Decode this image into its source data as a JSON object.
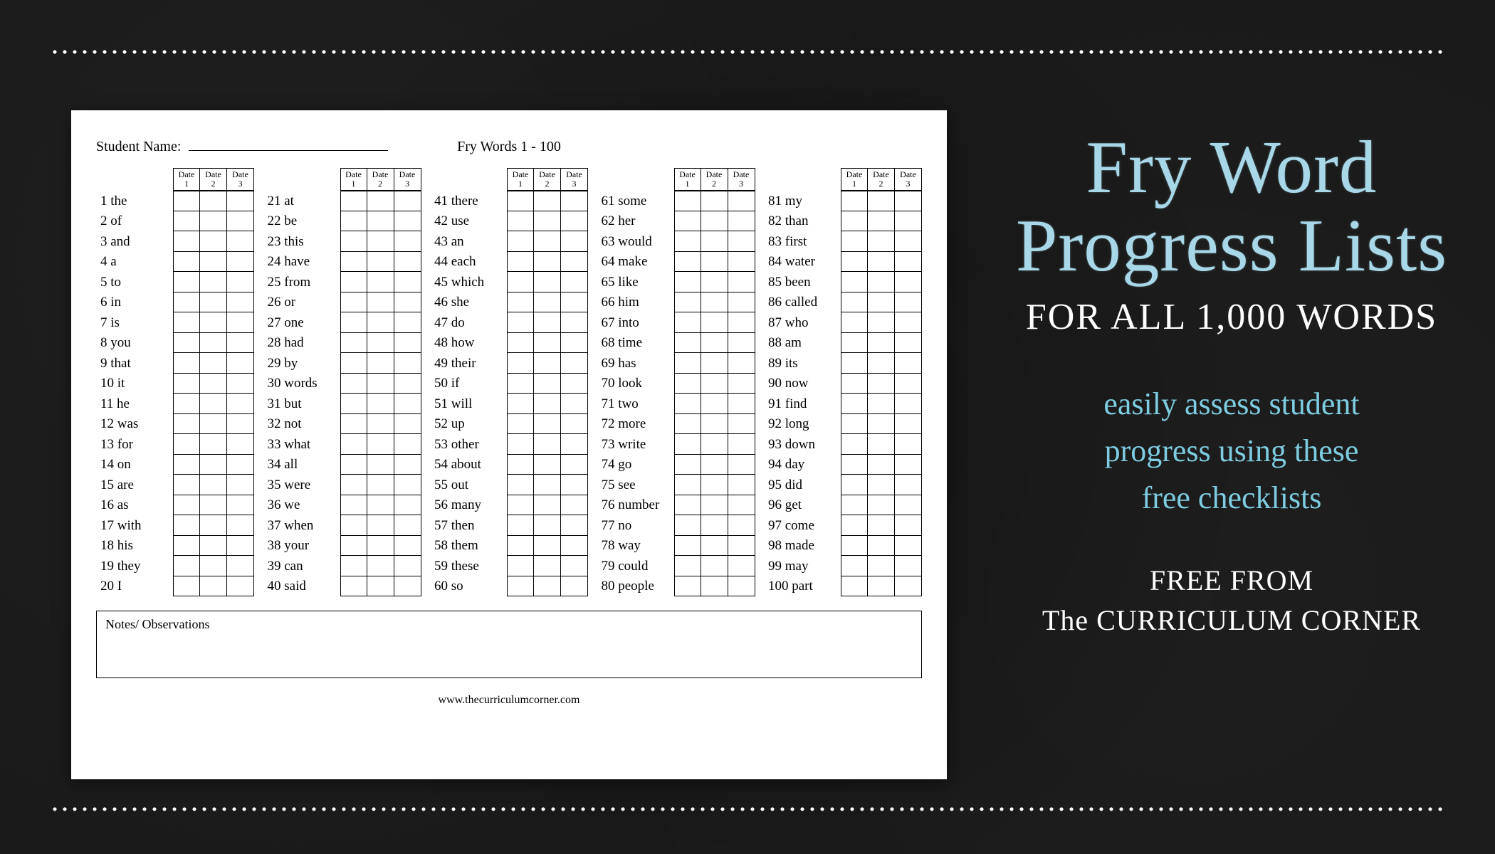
{
  "background_color": "#1a1a1a",
  "dot_color": "#ffffff",
  "worksheet": {
    "student_label": "Student Name:",
    "title": "Fry Words 1 - 100",
    "date_header_top": "Date",
    "date_numbers": [
      "1",
      "2",
      "3"
    ],
    "columns": [
      [
        "1 the",
        "2 of",
        "3 and",
        "4 a",
        "5 to",
        "6 in",
        "7 is",
        "8 you",
        "9 that",
        "10 it",
        "11 he",
        "12 was",
        "13 for",
        "14 on",
        "15 are",
        "16 as",
        "17 with",
        "18 his",
        "19 they",
        "20 I"
      ],
      [
        "21 at",
        "22 be",
        "23 this",
        "24 have",
        "25 from",
        "26 or",
        "27 one",
        "28 had",
        "29 by",
        "30 words",
        "31 but",
        "32 not",
        "33 what",
        "34 all",
        "35 were",
        "36 we",
        "37 when",
        "38 your",
        "39 can",
        "40 said"
      ],
      [
        "41 there",
        "42 use",
        "43 an",
        "44 each",
        "45 which",
        "46 she",
        "47 do",
        "48 how",
        "49 their",
        "50 if",
        "51 will",
        "52 up",
        "53 other",
        "54 about",
        "55 out",
        "56 many",
        "57 then",
        "58 them",
        "59 these",
        "60 so"
      ],
      [
        "61 some",
        "62 her",
        "63 would",
        "64 make",
        "65 like",
        "66 him",
        "67 into",
        "68 time",
        "69 has",
        "70 look",
        "71 two",
        "72 more",
        "73 write",
        "74 go",
        "75 see",
        "76 number",
        "77 no",
        "78 way",
        "79 could",
        "80 people"
      ],
      [
        "81 my",
        "82 than",
        "83 first",
        "84 water",
        "85 been",
        "86 called",
        "87 who",
        "88 am",
        "89 its",
        "90 now",
        "91 find",
        "92 long",
        "93 down",
        "94 day",
        "95 did",
        "96 get",
        "97 come",
        "98 made",
        "99 may",
        "100 part"
      ]
    ],
    "notes_label": "Notes/ Observations",
    "footer_url": "www.thecurriculumcorner.com"
  },
  "promo": {
    "title_line1": "Fry Word",
    "title_line2": "Progress Lists",
    "title_color": "#a8d8e8",
    "subtitle": "FOR ALL 1,000 WORDS",
    "subtitle_color": "#ffffff",
    "description_line1": "easily assess student",
    "description_line2": "progress using these",
    "description_line3": "free checklists",
    "description_color": "#7ecce0",
    "footer_line1": "FREE FROM",
    "footer_line2": "The CURRICULUM CORNER",
    "footer_color": "#ffffff"
  }
}
